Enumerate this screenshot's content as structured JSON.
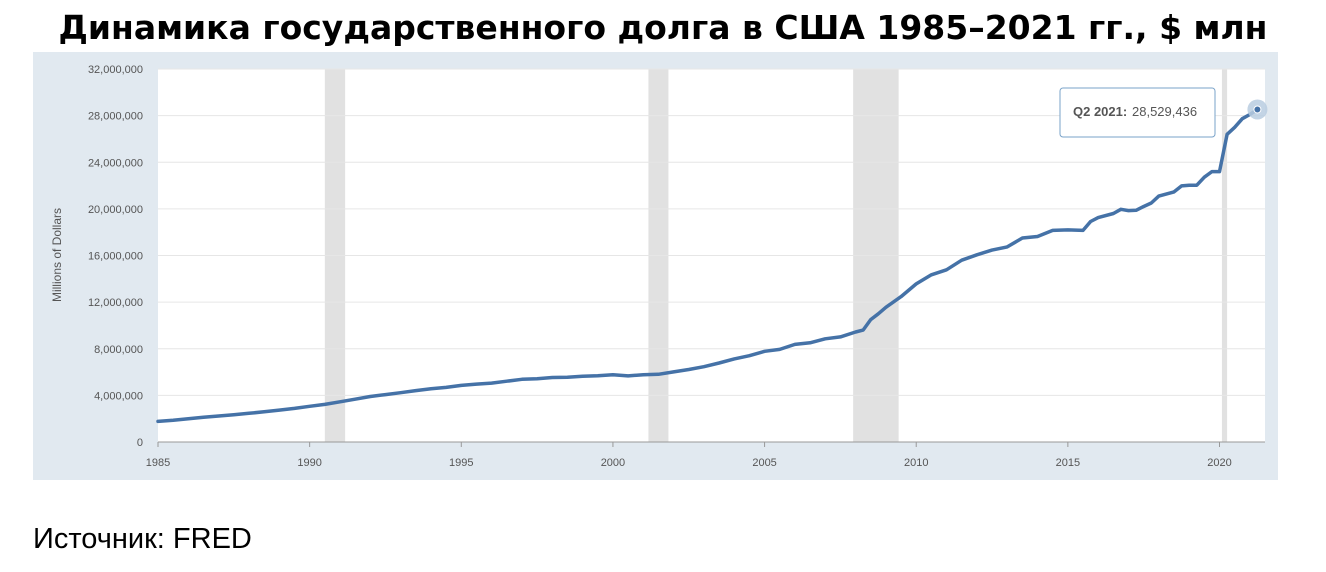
{
  "title": "Динамика государственного долга в США 1985–2021 гг., $ млн",
  "source": "Источник: FRED",
  "chart_data": {
    "type": "line",
    "title": "Динамика государственного долга в США 1985–2021 гг., $ млн",
    "ylabel": "Millions of Dollars",
    "xlabel": "",
    "xlim": [
      1985,
      2021.5
    ],
    "ylim": [
      0,
      32000000
    ],
    "y_ticks": [
      0,
      4000000,
      8000000,
      12000000,
      16000000,
      20000000,
      24000000,
      28000000,
      32000000
    ],
    "y_tick_labels": [
      "0",
      "4,000,000",
      "8,000,000",
      "12,000,000",
      "16,000,000",
      "20,000,000",
      "24,000,000",
      "28,000,000",
      "32,000,000"
    ],
    "x_ticks": [
      1985,
      1990,
      1995,
      2000,
      2005,
      2010,
      2015,
      2020
    ],
    "x_tick_labels": [
      "1985",
      "1990",
      "1995",
      "2000",
      "2005",
      "2010",
      "2015",
      "2020"
    ],
    "grid": true,
    "line_color": "#4572a7",
    "recession_color": "#e1e1e1",
    "recessions": [
      [
        1990.5,
        1991.17
      ],
      [
        2001.17,
        2001.83
      ],
      [
        2007.92,
        2009.42
      ],
      [
        2020.08,
        2020.25
      ]
    ],
    "series": [
      {
        "x": [
          1985,
          1985.5,
          1986,
          1986.5,
          1987,
          1987.5,
          1988,
          1988.5,
          1989,
          1989.5,
          1990,
          1990.5,
          1991,
          1991.5,
          1992,
          1992.5,
          1993,
          1993.5,
          1994,
          1994.5,
          1995,
          1995.5,
          1996,
          1996.5,
          1997,
          1997.5,
          1998,
          1998.5,
          1999,
          1999.5,
          2000,
          2000.5,
          2001,
          2001.5,
          2002,
          2002.5,
          2003,
          2003.5,
          2004,
          2004.5,
          2005,
          2005.5,
          2006,
          2006.5,
          2007,
          2007.5,
          2008,
          2008.25,
          2008.5,
          2008.75,
          2009,
          2009.5,
          2010,
          2010.5,
          2011,
          2011.5,
          2012,
          2012.5,
          2013,
          2013.5,
          2014,
          2014.5,
          2015,
          2015.5,
          2015.75,
          2016,
          2016.5,
          2016.75,
          2017,
          2017.25,
          2017.5,
          2017.75,
          2018,
          2018.5,
          2018.75,
          2019,
          2019.25,
          2019.5,
          2019.75,
          2020,
          2020.25,
          2020.5,
          2020.75,
          2021,
          2021.25
        ],
        "values": [
          1770000,
          1860000,
          1990000,
          2120000,
          2230000,
          2330000,
          2460000,
          2590000,
          2740000,
          2880000,
          3060000,
          3230000,
          3450000,
          3670000,
          3900000,
          4070000,
          4230000,
          4410000,
          4560000,
          4680000,
          4860000,
          4970000,
          5050000,
          5220000,
          5380000,
          5430000,
          5530000,
          5550000,
          5640000,
          5690000,
          5770000,
          5670000,
          5770000,
          5810000,
          6010000,
          6220000,
          6460000,
          6780000,
          7130000,
          7400000,
          7780000,
          7940000,
          8370000,
          8510000,
          8850000,
          9020000,
          9440000,
          9600000,
          10500000,
          11000000,
          11560000,
          12470000,
          13560000,
          14340000,
          14770000,
          15600000,
          16060000,
          16460000,
          16740000,
          17500000,
          17630000,
          18150000,
          18200000,
          18150000,
          18920000,
          19250000,
          19600000,
          19960000,
          19850000,
          19880000,
          20200000,
          20500000,
          21100000,
          21460000,
          21970000,
          22030000,
          22030000,
          22720000,
          23200000,
          23200000,
          26400000,
          27000000,
          27740000,
          28100000,
          28529436
        ]
      }
    ],
    "tooltip": {
      "label": "Q2 2021:",
      "value": "28,529,436",
      "x": 2021.25,
      "y": 28529436
    }
  }
}
